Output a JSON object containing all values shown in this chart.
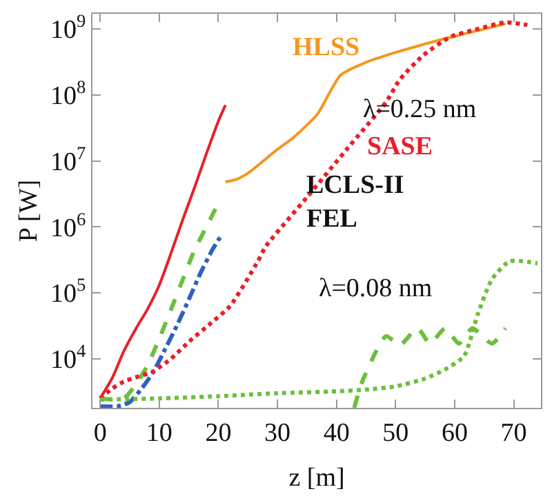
{
  "chart_data": {
    "type": "line",
    "xlabel": "z [m]",
    "ylabel": "P [W]",
    "log": "y",
    "legend": false,
    "marker": "none",
    "xlim": [
      -1.3,
      74.6
    ],
    "xticks": [
      0,
      10,
      20,
      30,
      40,
      50,
      60,
      70
    ],
    "ylim": [
      1800,
      1700000000
    ],
    "yticks": [
      {
        "value": 10000,
        "label": "10$^{4}$"
      },
      {
        "value": 100000,
        "label": "10$^{5}$"
      },
      {
        "value": 1000000,
        "label": "10$^{6}$"
      },
      {
        "value": 10000000,
        "label": "10$^{7}$"
      },
      {
        "value": 100000000,
        "label": "10$^{8}$"
      },
      {
        "value": 1000000000,
        "label": "10$^{9}$"
      }
    ],
    "annotations": [
      "λ=0.25 nm",
      "LCLS-II\nFEL",
      "λ=0.08 nm"
    ],
    "series": [
      {
        "color": "#e8202a",
        "line_style": "solid",
        "x": [
          0,
          2,
          4,
          6,
          8,
          10,
          12,
          14,
          16,
          18,
          20,
          21.2
        ],
        "values": [
          2500,
          5000,
          13000,
          28000,
          56000,
          130000,
          400000,
          1300000,
          4000000,
          13000000,
          40000000,
          70000000
        ]
      },
      {
        "color": "#6cbf3c",
        "line_style": "dashed",
        "x": [
          0,
          2,
          4,
          6,
          8,
          10,
          12,
          14,
          16,
          18,
          20
        ],
        "values": [
          2500,
          2400,
          2500,
          4000,
          7900,
          20000,
          56000,
          160000,
          450000,
          1000000,
          2300000
        ]
      },
      {
        "color": "#3060c0",
        "line_style": "dashdot",
        "x": [
          0,
          3,
          5,
          7,
          9,
          11,
          13,
          15,
          17,
          19,
          20.5
        ],
        "values": [
          1900,
          1900,
          2200,
          3500,
          6300,
          14000,
          32000,
          79000,
          200000,
          450000,
          740000
        ]
      },
      {
        "name": "HLSS",
        "color": "#f5961e",
        "line_style": "solid",
        "x": [
          21.2,
          23,
          25.1,
          29.8,
          32.8,
          36.7,
          40.7,
          45.3,
          50,
          57.7,
          63.9,
          68.6
        ],
        "values": [
          4800000,
          5200000,
          6600000,
          14500000,
          23000000,
          50000000,
          200000000,
          320000000,
          440000000,
          690000000,
          950000000,
          1200000000
        ]
      },
      {
        "name": "SASE",
        "color": "#e8202a",
        "line_style": "dotted",
        "x": [
          0,
          2,
          4,
          6,
          8.8,
          12,
          15,
          18.8,
          22,
          26.7,
          28,
          35,
          42,
          48.4,
          50.7,
          54.7,
          59.3,
          63.9,
          68.6,
          72.3
        ],
        "values": [
          2500,
          3500,
          4500,
          5200,
          6300,
          10000,
          18000,
          35000,
          63000,
          300000,
          500000,
          2800000,
          16000000,
          78000000,
          170000000,
          400000000,
          760000000,
          1000000000,
          1260000000,
          1150000000
        ]
      },
      {
        "color": "#6cbf3c",
        "line_style": "dotted",
        "x": [
          0,
          10,
          20,
          30,
          40,
          45,
          50,
          55,
          58.4,
          61.6,
          63.9,
          66.3,
          69.3,
          74
        ],
        "values": [
          2400,
          2500,
          2700,
          3000,
          3200,
          3400,
          3800,
          5000,
          6900,
          11000,
          47000,
          160000,
          300000,
          280000
        ]
      },
      {
        "color": "#6cbf3c",
        "line_style": "dashed",
        "x": [
          43,
          44.4,
          48.4,
          50.7,
          53.7,
          55.8,
          58.4,
          60.7,
          63,
          66.3,
          68.6
        ],
        "values": [
          1800,
          4600,
          22000,
          16000,
          29000,
          17000,
          29000,
          17000,
          29000,
          17000,
          29000
        ]
      }
    ]
  }
}
